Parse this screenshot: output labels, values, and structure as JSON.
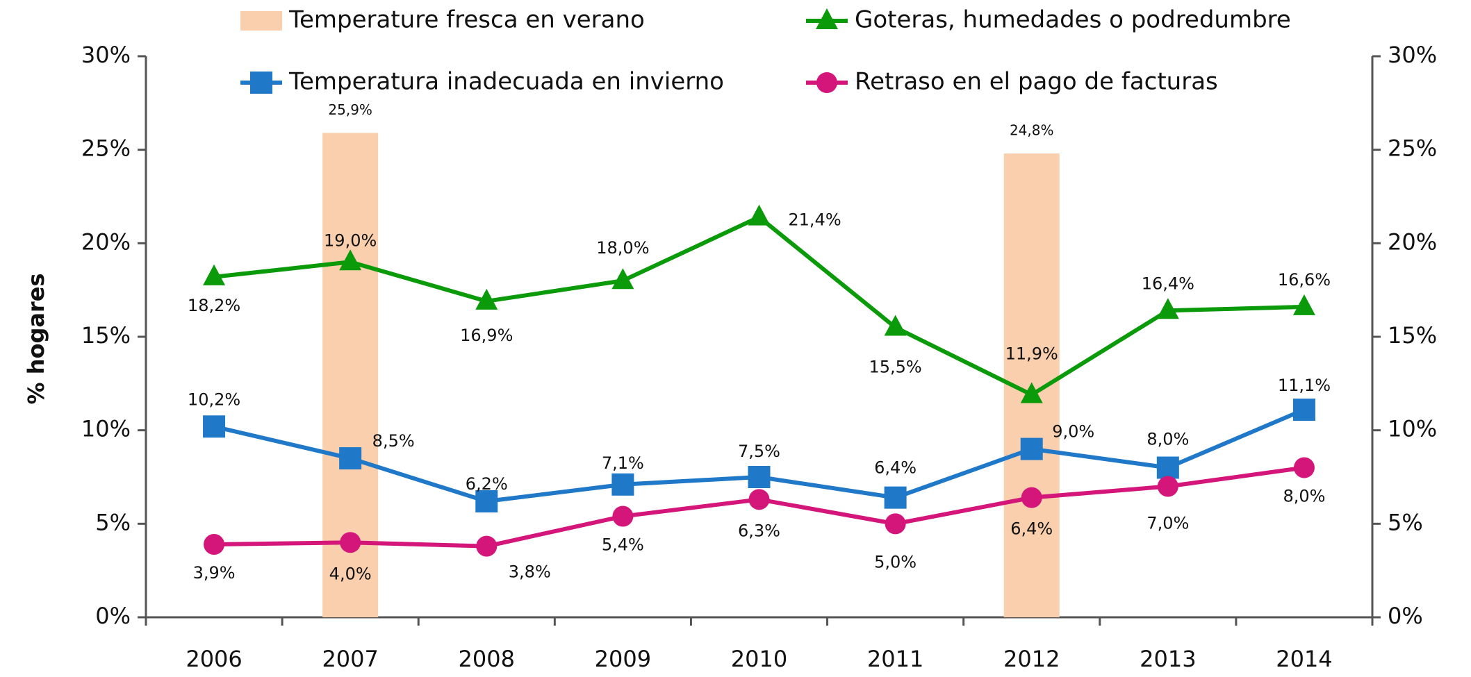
{
  "chart_data": {
    "type": "line",
    "categories": [
      "2006",
      "2007",
      "2008",
      "2009",
      "2010",
      "2011",
      "2012",
      "2013",
      "2014"
    ],
    "y_label": "% hogares",
    "series": [
      {
        "name": "Temperature fresca en verano",
        "type": "bar",
        "axis": "y2",
        "color": "#f9cfae",
        "values": [
          null,
          25.9,
          null,
          null,
          null,
          null,
          24.8,
          null,
          null
        ],
        "value_labels": [
          null,
          "25,9%",
          null,
          null,
          null,
          null,
          "24,8%",
          null,
          null
        ]
      },
      {
        "name": "Goteras, humedades o podredumbre",
        "type": "line",
        "marker": "triangle",
        "color": "#0a9a0a",
        "values": [
          18.2,
          19.0,
          16.9,
          18.0,
          21.4,
          15.5,
          11.9,
          16.4,
          16.6
        ],
        "value_labels": [
          "18,2%",
          "19,0%",
          "16,9%",
          "18,0%",
          "21,4%",
          "15,5%",
          "11,9%",
          "16,4%",
          "16,6%"
        ]
      },
      {
        "name": "Temperatura inadecuada en invierno",
        "type": "line",
        "marker": "square",
        "color": "#1f78c8",
        "values": [
          10.2,
          8.5,
          6.2,
          7.1,
          7.5,
          6.4,
          9.0,
          8.0,
          11.1
        ],
        "value_labels": [
          "10,2%",
          "8,5%",
          "6,2%",
          "7,1%",
          "7,5%",
          "6,4%",
          "9,0%",
          "8,0%",
          "11,1%"
        ]
      },
      {
        "name": "Retraso en el pago de facturas",
        "type": "line",
        "marker": "circle",
        "color": "#d4157a",
        "values": [
          3.9,
          4.0,
          3.8,
          5.4,
          6.3,
          5.0,
          6.4,
          7.0,
          8.0
        ],
        "value_labels": [
          "3,9%",
          "4,0%",
          "3,8%",
          "5,4%",
          "6,3%",
          "5,0%",
          "6,4%",
          "7,0%",
          "8,0%"
        ]
      }
    ],
    "ylim": [
      0,
      30
    ],
    "yticks": [
      {
        "value": 0,
        "label": "0%"
      },
      {
        "value": 5,
        "label": "5%"
      },
      {
        "value": 10,
        "label": "10%"
      },
      {
        "value": 15,
        "label": "15%"
      },
      {
        "value": 20,
        "label": "20%"
      },
      {
        "value": 25,
        "label": "25%"
      },
      {
        "value": 30,
        "label": "30%"
      }
    ],
    "y2lim": [
      0,
      30
    ],
    "y2ticks": [
      {
        "value": 0,
        "label": "0%"
      },
      {
        "value": 5,
        "label": "5%"
      },
      {
        "value": 10,
        "label": "10%"
      },
      {
        "value": 15,
        "label": "15%"
      },
      {
        "value": 20,
        "label": "20%"
      },
      {
        "value": 25,
        "label": "25%"
      },
      {
        "value": 30,
        "label": "30%"
      }
    ],
    "legend": "top",
    "grid": false
  }
}
